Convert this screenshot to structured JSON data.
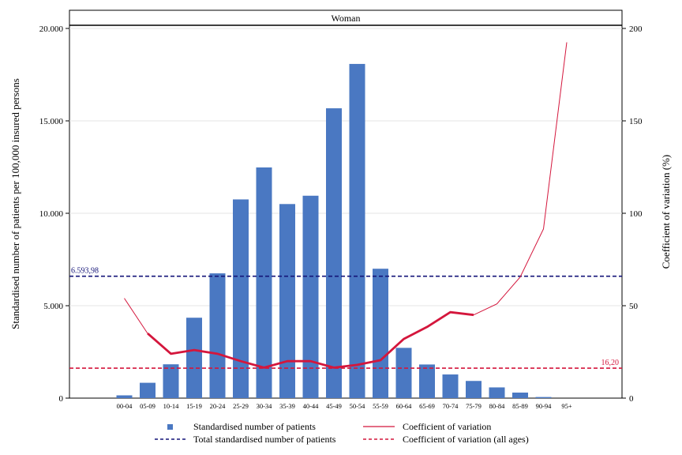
{
  "chart_data": {
    "type": "bar",
    "panel_title": "Woman",
    "ylabel": "Standardised number of patients per 100,000 insured persons",
    "y2label": "Coefficient of variation (%)",
    "ylim": [
      0,
      20000
    ],
    "y2lim": [
      0,
      200
    ],
    "yticks": [
      0,
      5000,
      10000,
      15000,
      20000
    ],
    "ytick_labels": [
      "0",
      "5.000",
      "10.000",
      "15.000",
      "20.000"
    ],
    "y2ticks": [
      0,
      50,
      100,
      150,
      200
    ],
    "y2tick_labels": [
      "0",
      "50",
      "100",
      "150",
      "200"
    ],
    "grid": true,
    "categories": [
      "00-04",
      "05-09",
      "10-14",
      "15-19",
      "20-24",
      "25-29",
      "30-34",
      "35-39",
      "40-44",
      "45-49",
      "50-54",
      "55-59",
      "60-64",
      "65-69",
      "70-74",
      "75-79",
      "80-84",
      "85-89",
      "90-94",
      "95+"
    ],
    "series": [
      {
        "name": "Standardised number of patients",
        "type": "bar",
        "axis": "left",
        "color": "#4a78c2",
        "values": [
          150,
          830,
          1830,
          4350,
          6750,
          10750,
          12480,
          10500,
          10950,
          15680,
          18080,
          7000,
          2720,
          1820,
          1280,
          930,
          580,
          300,
          60,
          0
        ]
      },
      {
        "name": "Coefficient of variation",
        "type": "line",
        "axis": "right",
        "color": "#d4163c",
        "values": [
          54,
          35,
          24,
          26,
          24,
          20,
          16.5,
          20,
          20,
          16.5,
          18,
          20.5,
          32,
          38.5,
          46.5,
          45,
          51,
          65.5,
          91.5,
          192.5
        ]
      }
    ],
    "reference_lines": [
      {
        "name": "Total standardised number of patients",
        "axis": "left",
        "value": 6593.98,
        "label": "6.593,98",
        "color": "#141478"
      },
      {
        "name": "Coefficient of variation (all ages)",
        "axis": "right",
        "value": 16.2,
        "label": "16,20",
        "color": "#d4163c"
      }
    ],
    "legend": {
      "placement": "bottom",
      "items": [
        {
          "label": "Standardised number of patients",
          "symbol": "square"
        },
        {
          "label": "Coefficient of variation",
          "symbol": "line"
        },
        {
          "label": "Total standardised number of patients",
          "symbol": "dash"
        },
        {
          "label": "Coefficient of variation (all ages)",
          "symbol": "dash"
        }
      ]
    }
  }
}
